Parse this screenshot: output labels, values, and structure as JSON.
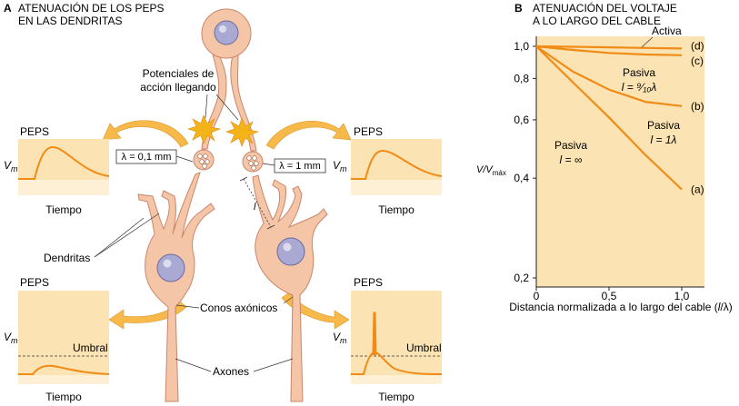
{
  "colors": {
    "panel": "#fbe3b3",
    "panel_light": "#fdf0d4",
    "trace": "#f08c16",
    "cell_fill": "#f5c5a8",
    "cell_stroke": "#c9866a",
    "nucleus": "#a9a9d3",
    "spark": "#f5b31a",
    "arrow": "#f6b94a"
  },
  "panel_a": {
    "letter": "A",
    "title_line1": "ATENUACIÓN DE LOS PEPS",
    "title_line2": "EN LAS DENDRITAS",
    "label_potentials_1": "Potenciales de",
    "label_potentials_2": "acción llegando",
    "lambda_left": "λ = 0,1 mm",
    "lambda_right": "λ = 1 mm",
    "length_label": "l",
    "label_dendrites": "Dendritas",
    "label_cones": "Conos axónicos",
    "label_axons": "Axones",
    "graph_title": "PEPS",
    "graph_ylabel_main": "V",
    "graph_ylabel_sub": "m",
    "graph_xlabel": "Tiempo",
    "threshold_label": "Umbral"
  },
  "panel_b": {
    "letter": "B",
    "title_line1": "ATENUACIÓN DEL VOLTAJE",
    "title_line2": "A LO LARGO DEL CABLE",
    "xlabel_prefix": "Distancia normalizada a lo largo del cable (",
    "xlabel_var": "l",
    "xlabel_suffix": "/λ)",
    "ylabel_main": "V",
    "ylabel_over": "/V",
    "ylabel_sub": "máx",
    "label_activa": "Activa",
    "pasiva_word": "Pasiva",
    "label_pasiva_c_eq": "l = ⁹⁄₁₀λ",
    "label_pasiva_b_eq": "l = 1λ",
    "label_pasiva_a_eq": "l = ∞"
  },
  "chart_data": {
    "type": "line",
    "xlabel": "Distancia normalizada a lo largo del cable (l/λ)",
    "ylabel": "V/Vmáx",
    "y_scale": "log",
    "xlim": [
      0,
      1.0
    ],
    "ylim": [
      0.2,
      1.0
    ],
    "x_ticks": [
      "0",
      "0,5",
      "1,0"
    ],
    "y_ticks": [
      "1,0",
      "0,8",
      "0,6",
      "0,4",
      "0,2"
    ],
    "grid": false,
    "series": [
      {
        "name": "(d)",
        "x": [
          0,
          0.25,
          0.5,
          0.75,
          1.0
        ],
        "y": [
          1.0,
          0.997,
          0.993,
          0.989,
          0.985
        ]
      },
      {
        "name": "(c)",
        "x": [
          0,
          0.25,
          0.5,
          0.75,
          1.0
        ],
        "y": [
          1.0,
          0.975,
          0.955,
          0.945,
          0.94
        ]
      },
      {
        "name": "(b)",
        "x": [
          0,
          0.25,
          0.5,
          0.75,
          1.0
        ],
        "y": [
          1.0,
          0.84,
          0.74,
          0.68,
          0.66
        ]
      },
      {
        "name": "(a)",
        "x": [
          0,
          0.25,
          0.5,
          0.75,
          1.0
        ],
        "y": [
          1.0,
          0.78,
          0.61,
          0.47,
          0.37
        ]
      }
    ]
  }
}
